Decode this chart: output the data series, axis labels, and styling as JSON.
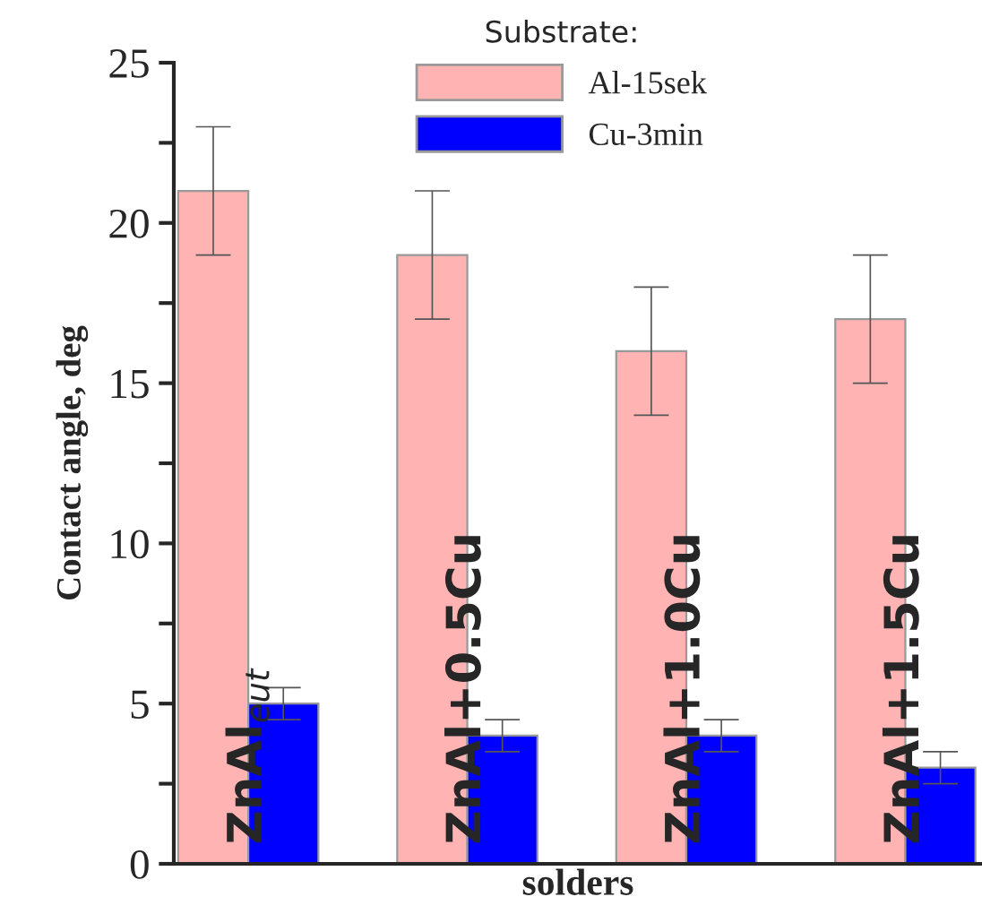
{
  "chart_data": {
    "type": "bar",
    "xlabel": "solders",
    "ylabel": "Contact angle, deg",
    "legend_title": "Substrate:",
    "categories": [
      "ZnAl$_{eut}$",
      "ZnAl+0.5Cu",
      "ZnAl+1.0Cu",
      "ZnAl+1.5Cu"
    ],
    "series": [
      {
        "name": "Al-15sek",
        "color": "#ffb3b3",
        "values": [
          21,
          19,
          16,
          17
        ],
        "errors": [
          2,
          2,
          2,
          2
        ]
      },
      {
        "name": "Cu-3min",
        "color": "#0000ff",
        "values": [
          5,
          4,
          4,
          3
        ],
        "errors": [
          0.5,
          0.5,
          0.5,
          0.5
        ]
      }
    ],
    "ylim": [
      0,
      25
    ],
    "yticks": [
      0,
      {
        "value": 2.5,
        "label": null
      },
      5,
      {
        "value": 7.5,
        "label": null
      },
      10,
      {
        "value": 12.5,
        "label": null
      },
      15,
      {
        "value": 17.5,
        "label": null
      },
      20,
      {
        "value": 22.5,
        "label": null
      },
      25
    ],
    "grid": false,
    "legend": "top"
  }
}
